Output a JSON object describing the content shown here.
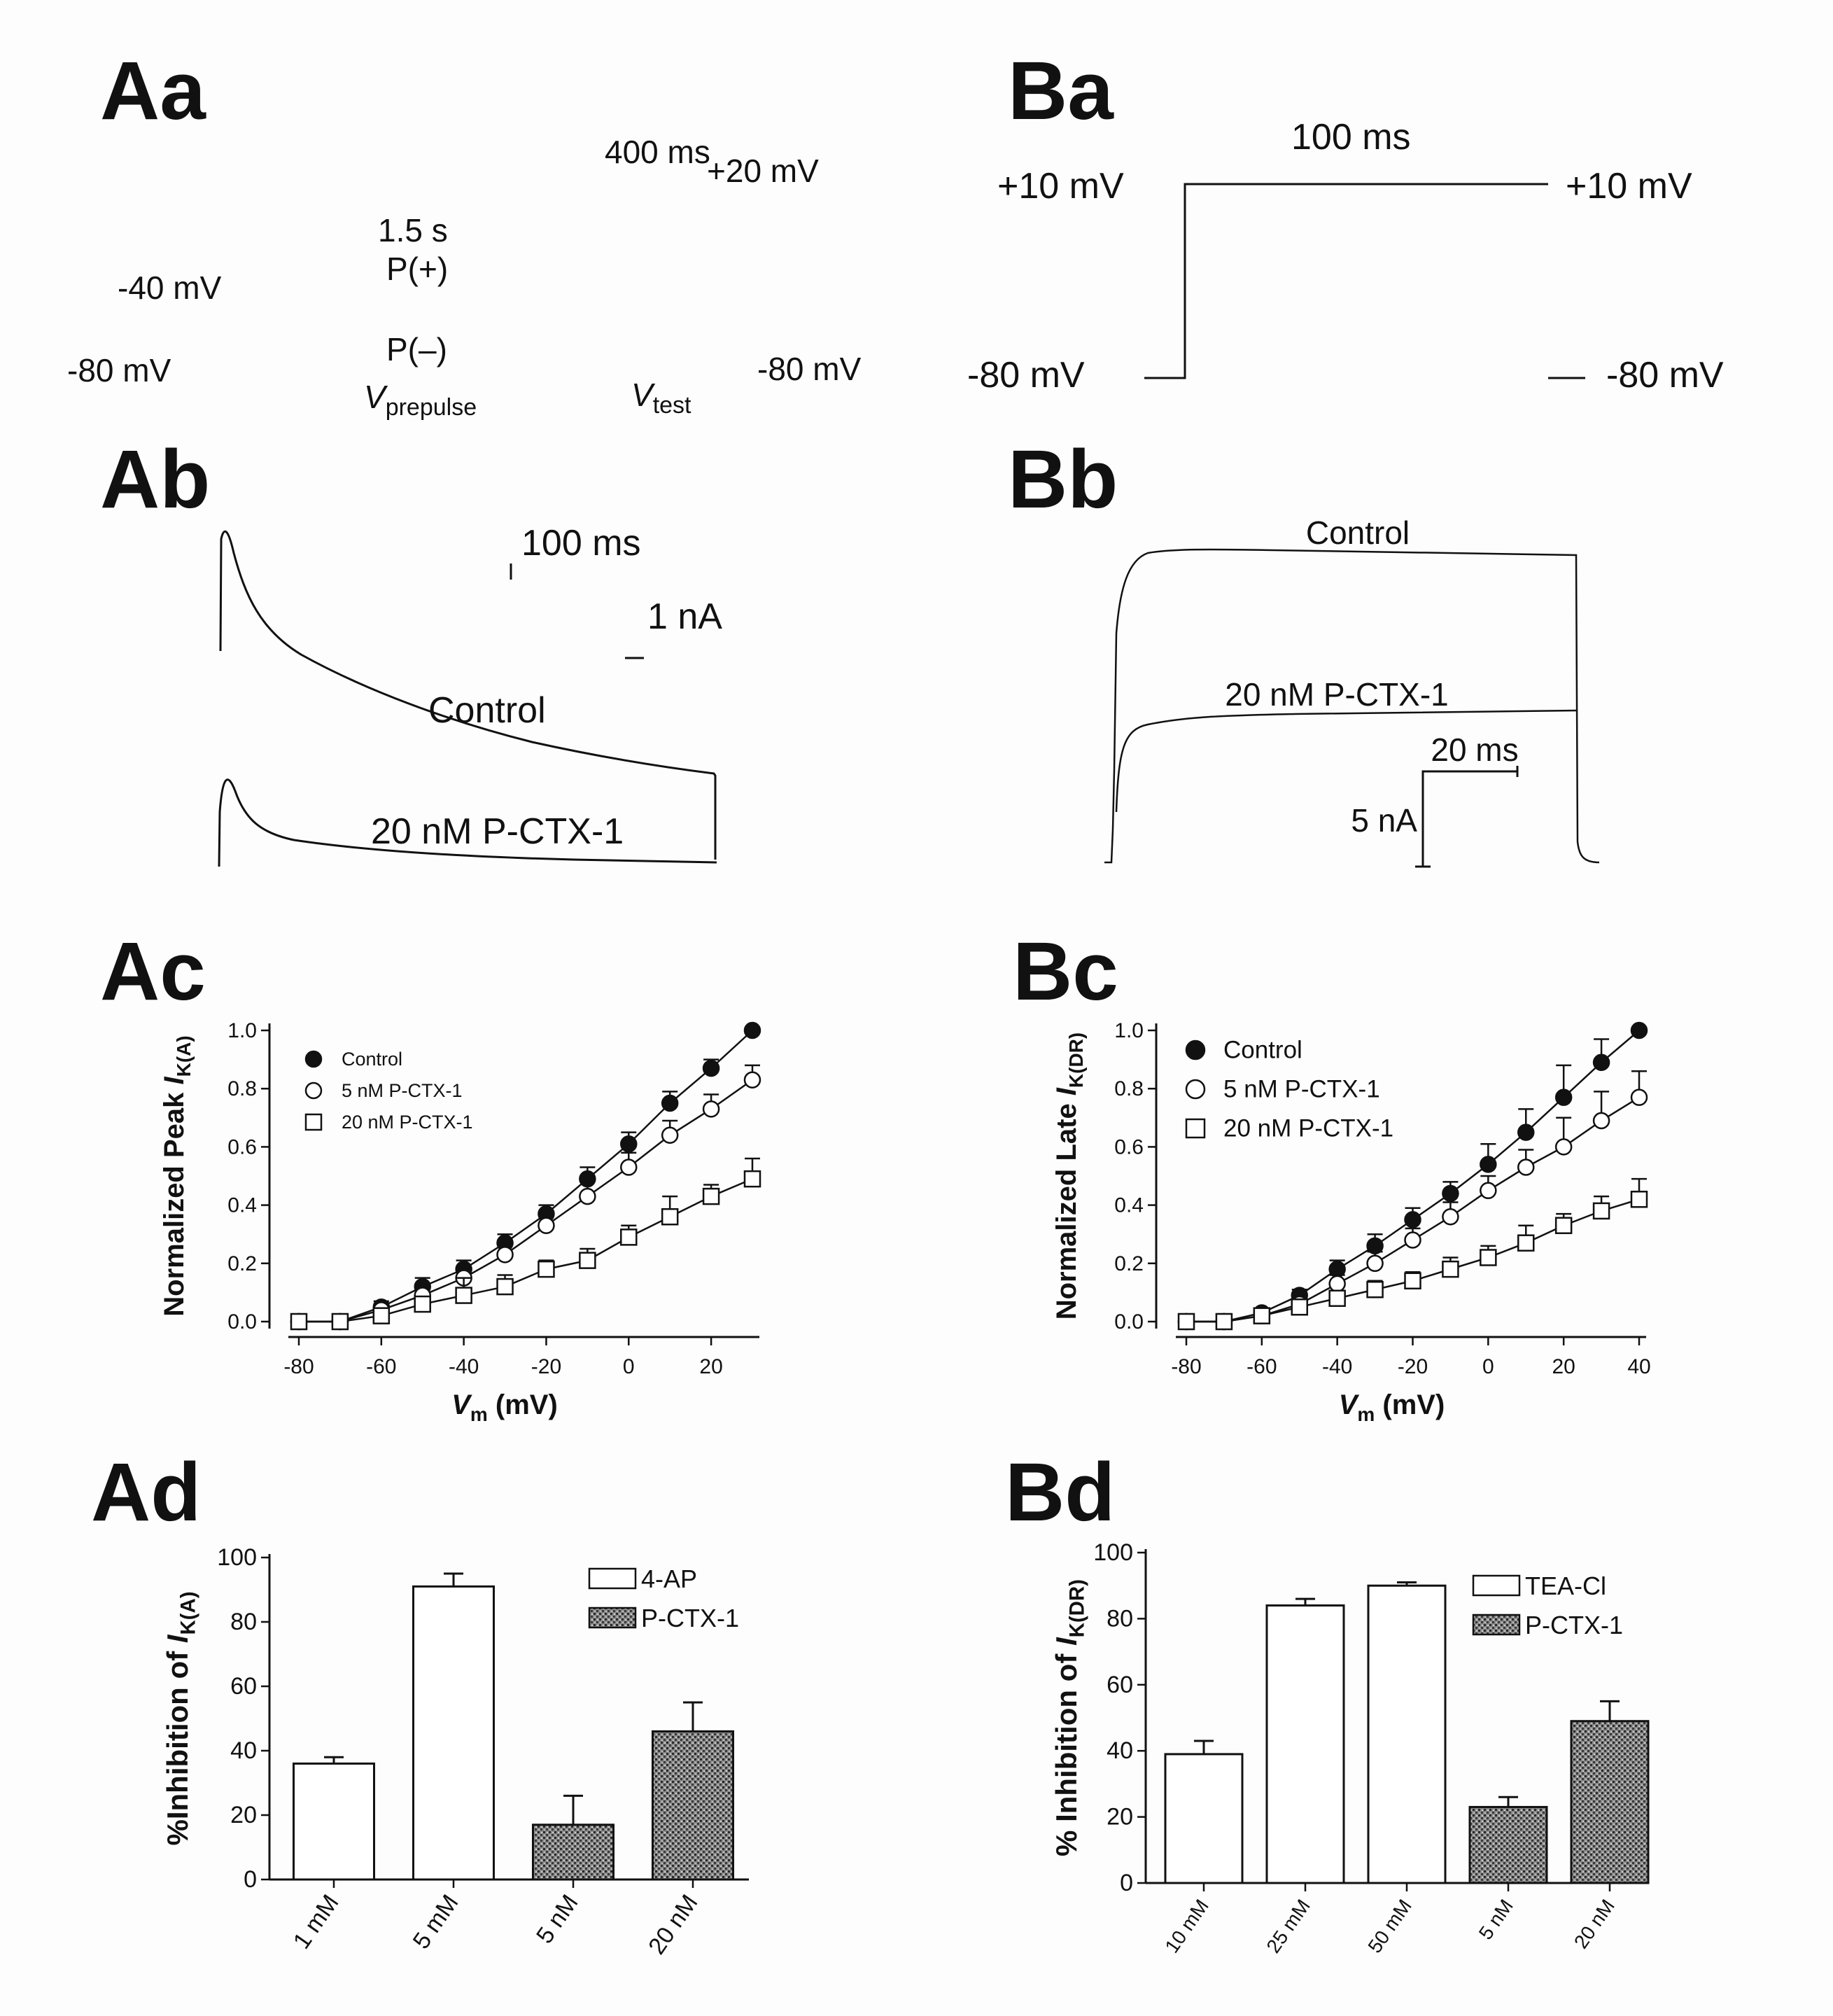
{
  "panels": {
    "Aa": {
      "label": "Aa",
      "time_prepulse": "1.5 s",
      "time_test": "400 ms",
      "v_hold_left": "-80 mV",
      "v_prepulse_pos": "-40 mV",
      "p_plus": "P(+)",
      "p_minus": "P(–)",
      "v_test_level": "+20 mV",
      "v_hold_right": "-80 mV",
      "v_prepulse_main": "V",
      "v_prepulse_sub": "prepulse",
      "v_test_main": "V",
      "v_test_sub": "test"
    },
    "Ba": {
      "label": "Ba",
      "duration": "100 ms",
      "v_step_left": "+10 mV",
      "v_step_right": "+10 mV",
      "v_hold_left": "-80 mV",
      "v_hold_right": "-80 mV"
    },
    "Ab": {
      "label": "Ab",
      "scale_time": "100 ms",
      "scale_current": "1 nA",
      "trace_control": "Control",
      "trace_toxin": "20 nM P-CTX-1"
    },
    "Bb": {
      "label": "Bb",
      "trace_control": "Control",
      "trace_toxin": "20 nM P-CTX-1",
      "scale_time": "20 ms",
      "scale_current": "5 nA"
    },
    "Ac": {
      "label": "Ac"
    },
    "Bc": {
      "label": "Bc"
    },
    "Ad": {
      "label": "Ad"
    },
    "Bd": {
      "label": "Bd"
    }
  },
  "chart_data": [
    {
      "id": "Ac",
      "type": "line",
      "ylabel_main": "Normalized Peak ",
      "ylabel_italic": "I",
      "ylabel_sub": "K(A)",
      "xlabel_main": "V",
      "xlabel_sub": "m",
      "xlabel_rest": " (mV)",
      "xlim": [
        -80,
        30
      ],
      "ylim": [
        0,
        1.0
      ],
      "x_ticks": [
        "-80",
        "-60",
        "-40",
        "-20",
        "0",
        "20"
      ],
      "x_tick_values": [
        -80,
        -60,
        -40,
        -20,
        0,
        20
      ],
      "y_ticks": [
        "0.0",
        "0.2",
        "0.4",
        "0.6",
        "0.8",
        "1.0"
      ],
      "y_tick_values": [
        0,
        0.2,
        0.4,
        0.6,
        0.8,
        1.0
      ],
      "legend_position": "top-left",
      "x": [
        -80,
        -70,
        -60,
        -50,
        -40,
        -30,
        -20,
        -10,
        0,
        10,
        20,
        30
      ],
      "series": [
        {
          "name": "Control",
          "marker": "filled-circle",
          "values": [
            0,
            0,
            0.05,
            0.12,
            0.18,
            0.27,
            0.37,
            0.49,
            0.61,
            0.75,
            0.87,
            1.0
          ],
          "errors": [
            0,
            0,
            0.02,
            0.03,
            0.03,
            0.03,
            0.03,
            0.04,
            0.04,
            0.04,
            0.03,
            0
          ]
        },
        {
          "name": "5 nM P-CTX-1",
          "marker": "open-circle",
          "values": [
            0,
            0,
            0.04,
            0.09,
            0.15,
            0.23,
            0.33,
            0.43,
            0.53,
            0.64,
            0.73,
            0.83
          ],
          "errors": [
            0,
            0,
            0.02,
            0.03,
            0.03,
            0.04,
            0.04,
            0.05,
            0.05,
            0.05,
            0.05,
            0.05
          ]
        },
        {
          "name": "20 nM P-CTX-1",
          "marker": "open-square",
          "values": [
            0,
            0,
            0.02,
            0.06,
            0.09,
            0.12,
            0.18,
            0.21,
            0.29,
            0.36,
            0.43,
            0.49
          ],
          "errors": [
            0,
            0,
            0.01,
            0.02,
            0.06,
            0.04,
            0.03,
            0.04,
            0.04,
            0.07,
            0.04,
            0.07
          ]
        }
      ]
    },
    {
      "id": "Bc",
      "type": "line",
      "ylabel_main": "Normalized Late ",
      "ylabel_italic": "I",
      "ylabel_sub": "K(DR)",
      "xlabel_main": "V",
      "xlabel_sub": "m",
      "xlabel_rest": " (mV)",
      "xlim": [
        -80,
        40
      ],
      "ylim": [
        0,
        1.0
      ],
      "x_ticks": [
        "-80",
        "-60",
        "-40",
        "-20",
        "0",
        "20",
        "40"
      ],
      "x_tick_values": [
        -80,
        -60,
        -40,
        -20,
        0,
        20,
        40
      ],
      "y_ticks": [
        "0.0",
        "0.2",
        "0.4",
        "0.6",
        "0.8",
        "1.0"
      ],
      "y_tick_values": [
        0,
        0.2,
        0.4,
        0.6,
        0.8,
        1.0
      ],
      "legend_position": "top-left",
      "x": [
        -80,
        -70,
        -60,
        -50,
        -40,
        -30,
        -20,
        -10,
        0,
        10,
        20,
        30,
        40
      ],
      "series": [
        {
          "name": "Control",
          "marker": "filled-circle",
          "values": [
            0,
            0,
            0.03,
            0.09,
            0.18,
            0.26,
            0.35,
            0.44,
            0.54,
            0.65,
            0.77,
            0.89,
            1.0
          ],
          "errors": [
            0,
            0,
            0.01,
            0.02,
            0.03,
            0.04,
            0.04,
            0.04,
            0.07,
            0.08,
            0.11,
            0.08,
            0
          ]
        },
        {
          "name": "5 nM P-CTX-1",
          "marker": "open-circle",
          "values": [
            0,
            0,
            0.02,
            0.06,
            0.13,
            0.2,
            0.28,
            0.36,
            0.45,
            0.53,
            0.6,
            0.69,
            0.77
          ],
          "errors": [
            0,
            0,
            0.01,
            0.02,
            0.03,
            0.04,
            0.04,
            0.05,
            0.05,
            0.06,
            0.1,
            0.1,
            0.09
          ]
        },
        {
          "name": "20 nM P-CTX-1",
          "marker": "open-square",
          "values": [
            0,
            0,
            0.02,
            0.05,
            0.08,
            0.11,
            0.14,
            0.18,
            0.22,
            0.27,
            0.33,
            0.38,
            0.42
          ],
          "errors": [
            0,
            0,
            0.01,
            0.02,
            0.02,
            0.03,
            0.03,
            0.04,
            0.04,
            0.06,
            0.04,
            0.05,
            0.07
          ]
        }
      ]
    },
    {
      "id": "Ad",
      "type": "bar",
      "ylabel_main": "%Inhibition of ",
      "ylabel_italic": "I",
      "ylabel_sub": "K(A)",
      "ylim": [
        0,
        100
      ],
      "y_ticks": [
        "0",
        "20",
        "40",
        "60",
        "80",
        "100"
      ],
      "y_tick_values": [
        0,
        20,
        40,
        60,
        80,
        100
      ],
      "categories": [
        "1 mM",
        "5 mM",
        "5 nM",
        "20 nM"
      ],
      "values": [
        36,
        91,
        17,
        46
      ],
      "errors": [
        2,
        4,
        9,
        9
      ],
      "groups": [
        "4-AP",
        "4-AP",
        "P-CTX-1",
        "P-CTX-1"
      ],
      "legend": [
        {
          "name": "4-AP",
          "fill": "open"
        },
        {
          "name": "P-CTX-1",
          "fill": "hatched"
        }
      ],
      "legend_position": "top-right"
    },
    {
      "id": "Bd",
      "type": "bar",
      "ylabel_main": "% Inhibition of  ",
      "ylabel_italic": "I",
      "ylabel_sub": "K(DR)",
      "ylim": [
        0,
        100
      ],
      "y_ticks": [
        "0",
        "20",
        "40",
        "60",
        "80",
        "100"
      ],
      "y_tick_values": [
        0,
        20,
        40,
        60,
        80,
        100
      ],
      "categories": [
        "10 mM",
        "25 mM",
        "50 mM",
        "5 nM",
        "20 nM"
      ],
      "values": [
        39,
        84,
        90,
        23,
        49
      ],
      "errors": [
        4,
        2,
        1,
        3,
        6
      ],
      "groups": [
        "TEA-Cl",
        "TEA-Cl",
        "TEA-Cl",
        "P-CTX-1",
        "P-CTX-1"
      ],
      "legend": [
        {
          "name": "TEA-Cl",
          "fill": "open"
        },
        {
          "name": "P-CTX-1",
          "fill": "hatched"
        }
      ],
      "legend_position": "top-right"
    }
  ],
  "colors": {
    "ink": "#111111",
    "background": "#fdfdfd",
    "hatch_fill": "#5a5a5a"
  }
}
